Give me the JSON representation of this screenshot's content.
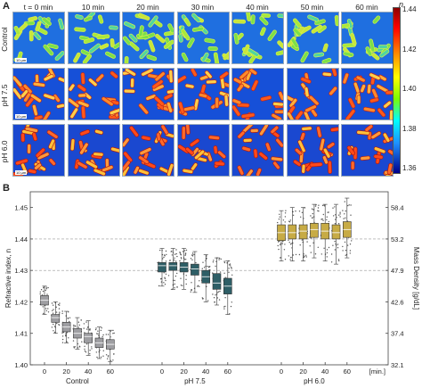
{
  "panel_a": {
    "label": "A",
    "time_labels": [
      "t = 0 min",
      "10 min",
      "20 min",
      "30 min",
      "40 min",
      "50 min",
      "60 min"
    ],
    "row_labels": [
      "Control",
      "pH 7.5",
      "pH 6.0"
    ],
    "scalebar": "10 µm",
    "colorbar": {
      "title": "n",
      "ticks": [
        "1.44",
        "1.42",
        "1.40",
        "1.38",
        "1.36"
      ]
    }
  },
  "panel_b": {
    "label": "B"
  },
  "chart_data": {
    "type": "box",
    "ylabel": "Refractive index, n",
    "y2label": "Mass Density [g/dL]",
    "ylim": [
      1.4,
      1.455
    ],
    "yticks": [
      "1.40",
      "1.41",
      "1.42",
      "1.43",
      "1.44",
      "1.45"
    ],
    "y2ticks": [
      "32.1",
      "37.4",
      "42.6",
      "47.9",
      "53.2",
      "58.4"
    ],
    "dashed_gridlines_at": [
      1.43,
      1.44
    ],
    "x_unit_label": "[min.]",
    "groups": [
      {
        "name": "Control",
        "color": "#9e9ea2",
        "times": [
          "0",
          "20",
          "40",
          "60"
        ],
        "x_ticks": [
          "0",
          "20",
          "40",
          "60"
        ],
        "boxes": [
          {
            "t": 0,
            "median": 1.4205,
            "q1": 1.419,
            "q3": 1.422,
            "lo": 1.416,
            "hi": 1.425
          },
          {
            "t": 10,
            "median": 1.415,
            "q1": 1.4135,
            "q3": 1.416,
            "lo": 1.41,
            "hi": 1.42
          },
          {
            "t": 20,
            "median": 1.412,
            "q1": 1.4105,
            "q3": 1.4135,
            "lo": 1.407,
            "hi": 1.417
          },
          {
            "t": 30,
            "median": 1.41,
            "q1": 1.4085,
            "q3": 1.4115,
            "lo": 1.405,
            "hi": 1.415
          },
          {
            "t": 40,
            "median": 1.409,
            "q1": 1.407,
            "q3": 1.41,
            "lo": 1.403,
            "hi": 1.414
          },
          {
            "t": 50,
            "median": 1.407,
            "q1": 1.4055,
            "q3": 1.4085,
            "lo": 1.402,
            "hi": 1.412
          },
          {
            "t": 60,
            "median": 1.4065,
            "q1": 1.405,
            "q3": 1.408,
            "lo": 1.401,
            "hi": 1.411
          }
        ]
      },
      {
        "name": "pH 7.5",
        "color": "#2e5e66",
        "x_ticks": [
          "0",
          "20",
          "40",
          "60"
        ],
        "boxes": [
          {
            "t": 0,
            "median": 1.4315,
            "q1": 1.4295,
            "q3": 1.4325,
            "lo": 1.425,
            "hi": 1.437
          },
          {
            "t": 10,
            "median": 1.4315,
            "q1": 1.43,
            "q3": 1.4325,
            "lo": 1.424,
            "hi": 1.437
          },
          {
            "t": 20,
            "median": 1.431,
            "q1": 1.4295,
            "q3": 1.4325,
            "lo": 1.424,
            "hi": 1.437
          },
          {
            "t": 30,
            "median": 1.4305,
            "q1": 1.4285,
            "q3": 1.432,
            "lo": 1.423,
            "hi": 1.436
          },
          {
            "t": 40,
            "median": 1.428,
            "q1": 1.426,
            "q3": 1.43,
            "lo": 1.42,
            "hi": 1.435
          },
          {
            "t": 50,
            "median": 1.426,
            "q1": 1.424,
            "q3": 1.429,
            "lo": 1.419,
            "hi": 1.434
          },
          {
            "t": 60,
            "median": 1.425,
            "q1": 1.4225,
            "q3": 1.4275,
            "lo": 1.416,
            "hi": 1.433
          }
        ]
      },
      {
        "name": "pH 6.0",
        "color": "#c7ab45",
        "x_ticks": [
          "0",
          "20",
          "40",
          "60"
        ],
        "boxes": [
          {
            "t": 0,
            "median": 1.442,
            "q1": 1.4395,
            "q3": 1.4445,
            "lo": 1.433,
            "hi": 1.449
          },
          {
            "t": 10,
            "median": 1.442,
            "q1": 1.44,
            "q3": 1.4445,
            "lo": 1.433,
            "hi": 1.45
          },
          {
            "t": 20,
            "median": 1.4425,
            "q1": 1.44,
            "q3": 1.4445,
            "lo": 1.433,
            "hi": 1.45
          },
          {
            "t": 30,
            "median": 1.443,
            "q1": 1.4405,
            "q3": 1.445,
            "lo": 1.434,
            "hi": 1.451
          },
          {
            "t": 40,
            "median": 1.4425,
            "q1": 1.44,
            "q3": 1.445,
            "lo": 1.433,
            "hi": 1.451
          },
          {
            "t": 50,
            "median": 1.442,
            "q1": 1.44,
            "q3": 1.4445,
            "lo": 1.432,
            "hi": 1.451
          },
          {
            "t": 60,
            "median": 1.443,
            "q1": 1.4405,
            "q3": 1.4455,
            "lo": 1.434,
            "hi": 1.453
          }
        ]
      }
    ]
  }
}
